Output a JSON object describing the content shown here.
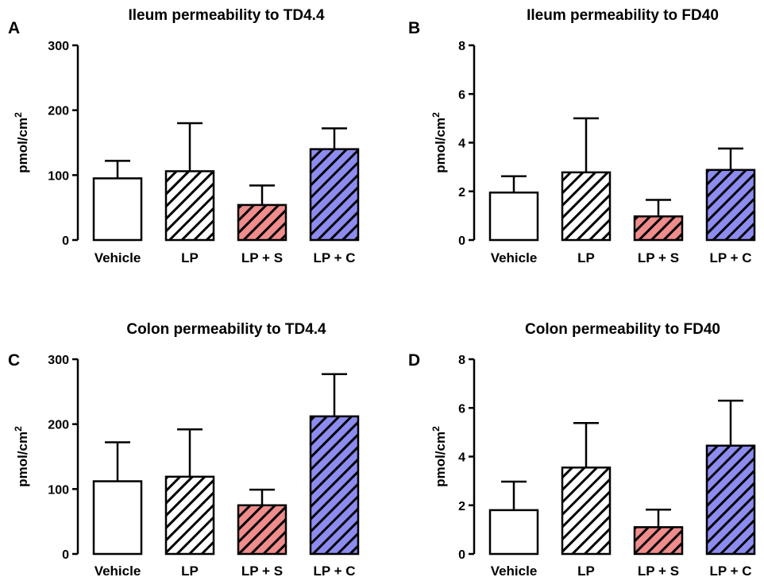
{
  "chart_data": [
    {
      "type": "bar",
      "panel_letter": "A",
      "title": "Ileum permeability to TD4.4",
      "ylabel": "pmol/cm",
      "ylabel_sup": "2",
      "categories": [
        "Vehicle",
        "LP",
        "LP + S",
        "LP + C"
      ],
      "values": [
        95,
        106,
        54,
        140
      ],
      "errors": [
        27,
        74,
        30,
        32
      ],
      "ylim": [
        0,
        300
      ],
      "yticks": [
        "0",
        "100",
        "200",
        "300"
      ],
      "ytick_values": [
        0,
        100,
        200,
        300
      ]
    },
    {
      "type": "bar",
      "panel_letter": "B",
      "title": "Ileum permeability to FD40",
      "ylabel": "pmol/cm",
      "ylabel_sup": "2",
      "categories": [
        "Vehicle",
        "LP",
        "LP + S",
        "LP + C"
      ],
      "values": [
        1.95,
        2.78,
        0.97,
        2.88
      ],
      "errors": [
        0.67,
        2.22,
        0.68,
        0.88
      ],
      "ylim": [
        0,
        8
      ],
      "yticks": [
        "0",
        "2",
        "4",
        "6",
        "8"
      ],
      "ytick_values": [
        0,
        2,
        4,
        6,
        8
      ]
    },
    {
      "type": "bar",
      "panel_letter": "C",
      "title": "Colon permeability to TD4.4",
      "ylabel": "pmol/cm",
      "ylabel_sup": "2",
      "categories": [
        "Vehicle",
        "LP",
        "LP + S",
        "LP + C"
      ],
      "values": [
        112,
        119,
        75,
        212
      ],
      "errors": [
        60,
        73,
        24,
        65
      ],
      "ylim": [
        0,
        300
      ],
      "yticks": [
        "0",
        "100",
        "200",
        "300"
      ],
      "ytick_values": [
        0,
        100,
        200,
        300
      ]
    },
    {
      "type": "bar",
      "panel_letter": "D",
      "title": "Colon permeability to FD40",
      "ylabel": "pmol/cm",
      "ylabel_sup": "2",
      "categories": [
        "Vehicle",
        "LP",
        "LP + S",
        "LP + C"
      ],
      "values": [
        1.8,
        3.55,
        1.1,
        4.45
      ],
      "errors": [
        1.17,
        1.83,
        0.72,
        1.85
      ],
      "ylim": [
        0,
        8
      ],
      "yticks": [
        "0",
        "2",
        "4",
        "6",
        "8"
      ],
      "ytick_values": [
        0,
        2,
        4,
        6,
        8
      ]
    }
  ],
  "style": {
    "bar_fills": [
      "#ffffff",
      "#ffffff",
      "#f08c8c",
      "#8c8cf0"
    ],
    "bar_hatched": [
      false,
      true,
      true,
      true
    ],
    "hatch_color": "#000000",
    "axis_color": "#000000"
  }
}
